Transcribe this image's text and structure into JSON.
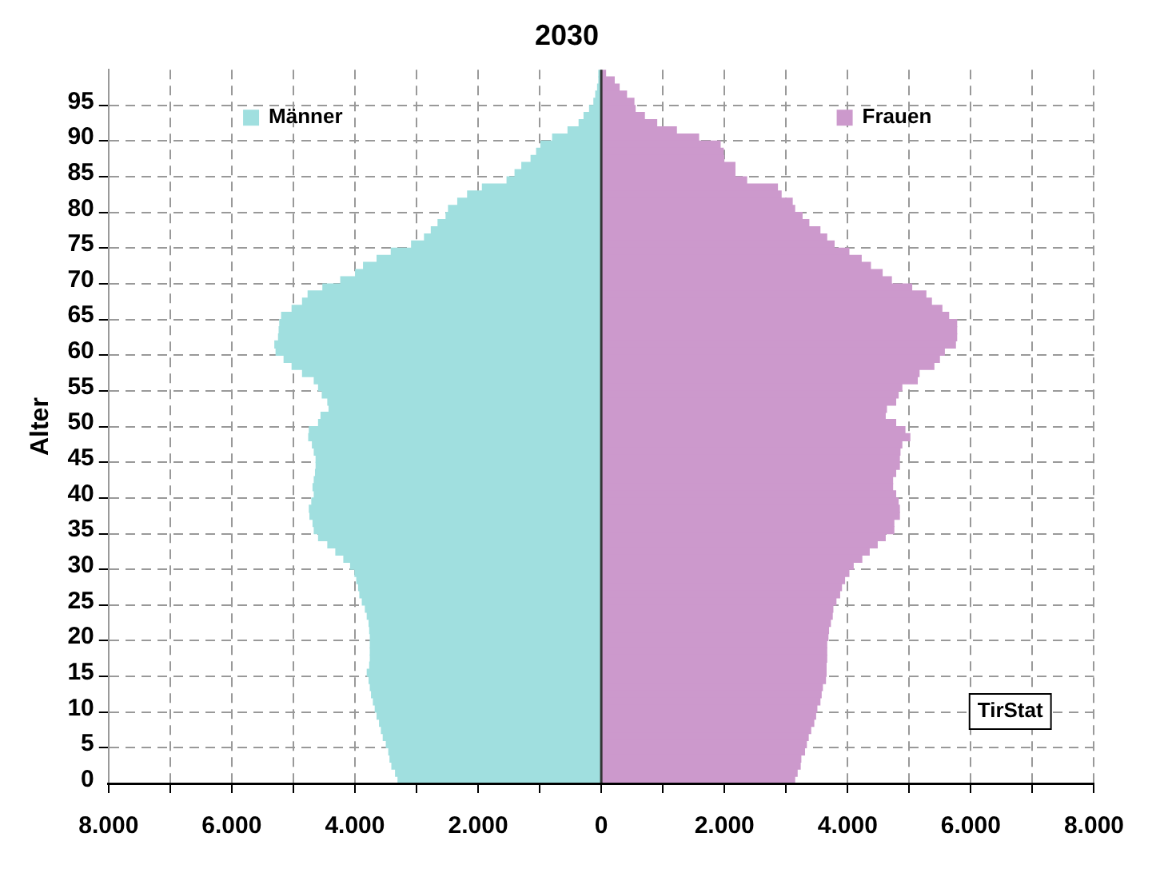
{
  "chart_data": {
    "type": "bar",
    "orientation": "horizontal",
    "stacked": true,
    "title": "2030",
    "ylabel": "Alter",
    "categories": [
      null,
      null,
      null,
      null,
      "95",
      null,
      null,
      null,
      null,
      "90",
      null,
      null,
      null,
      null,
      "85",
      null,
      null,
      null,
      null,
      "80",
      null,
      null,
      null,
      null,
      "75",
      null,
      null,
      null,
      null,
      "70",
      null,
      null,
      null,
      null,
      "65",
      null,
      null,
      null,
      null,
      "60",
      null,
      null,
      null,
      null,
      "55",
      null,
      null,
      null,
      null,
      "50",
      null,
      null,
      null,
      null,
      "45",
      null,
      null,
      null,
      null,
      "40",
      null,
      null,
      null,
      null,
      "35",
      null,
      null,
      null,
      null,
      "30",
      null,
      null,
      null,
      null,
      "25",
      null,
      null,
      null,
      null,
      "20",
      null,
      null,
      null,
      null,
      "15",
      null,
      null,
      null,
      null,
      "10",
      null,
      null,
      null,
      null,
      "5",
      null,
      null,
      null,
      null,
      "0"
    ],
    "series": [
      {
        "name": "Männer",
        "color": "#a0dfdf",
        "values": [
          -40,
          -40,
          -60,
          -90,
          -120,
          -190,
          -280,
          -360,
          -540,
          -790,
          -980,
          -1050,
          -1140,
          -1290,
          -1400,
          -1530,
          -1930,
          -2170,
          -2330,
          -2480,
          -2520,
          -2650,
          -2760,
          -2870,
          -3080,
          -3410,
          -3640,
          -3860,
          -3990,
          -4230,
          -4520,
          -4760,
          -4850,
          -5020,
          -5190,
          -5220,
          -5230,
          -5240,
          -5300,
          -5280,
          -5150,
          -5020,
          -4850,
          -4660,
          -4590,
          -4530,
          -4440,
          -4420,
          -4550,
          -4590,
          -4740,
          -4750,
          -4690,
          -4660,
          -4630,
          -4630,
          -4640,
          -4660,
          -4680,
          -4660,
          -4700,
          -4740,
          -4730,
          -4680,
          -4660,
          -4590,
          -4440,
          -4310,
          -4180,
          -4070,
          -4000,
          -3970,
          -3940,
          -3920,
          -3880,
          -3830,
          -3800,
          -3770,
          -3760,
          -3750,
          -3750,
          -3750,
          -3750,
          -3760,
          -3800,
          -3770,
          -3750,
          -3730,
          -3700,
          -3670,
          -3640,
          -3600,
          -3570,
          -3540,
          -3490,
          -3450,
          -3430,
          -3400,
          -3340,
          -3300
        ]
      },
      {
        "name": "Frauen",
        "color": "#cc99cc",
        "values": [
          70,
          210,
          290,
          410,
          530,
          550,
          700,
          900,
          1220,
          1580,
          1930,
          1980,
          1990,
          2170,
          2170,
          2360,
          2860,
          2920,
          3100,
          3140,
          3260,
          3370,
          3550,
          3660,
          3780,
          4020,
          4220,
          4370,
          4560,
          4710,
          5040,
          5270,
          5360,
          5530,
          5640,
          5770,
          5770,
          5770,
          5750,
          5570,
          5490,
          5400,
          5160,
          5130,
          4880,
          4820,
          4780,
          4630,
          4610,
          4780,
          4930,
          5010,
          4880,
          4850,
          4840,
          4840,
          4780,
          4730,
          4730,
          4780,
          4820,
          4840,
          4840,
          4750,
          4750,
          4610,
          4480,
          4350,
          4230,
          4090,
          4020,
          3950,
          3900,
          3870,
          3810,
          3760,
          3750,
          3720,
          3690,
          3680,
          3660,
          3660,
          3660,
          3650,
          3650,
          3640,
          3590,
          3570,
          3550,
          3500,
          3480,
          3450,
          3400,
          3360,
          3330,
          3300,
          3240,
          3230,
          3180,
          3140
        ]
      }
    ],
    "xlim": [
      -8000,
      8000
    ],
    "xticks": [
      {
        "value": -8000,
        "label": "8.000"
      },
      {
        "value": -7000,
        "label": null
      },
      {
        "value": -6000,
        "label": "6.000"
      },
      {
        "value": -5000,
        "label": null
      },
      {
        "value": -4000,
        "label": "4.000"
      },
      {
        "value": -3000,
        "label": null
      },
      {
        "value": -2000,
        "label": "2.000"
      },
      {
        "value": -1000,
        "label": null
      },
      0,
      {
        "value": 1000,
        "label": null
      },
      {
        "value": 2000,
        "label": "2.000"
      },
      {
        "value": 3000,
        "label": null
      },
      {
        "value": 4000,
        "label": "4.000"
      },
      {
        "value": 5000,
        "label": null
      },
      {
        "value": 6000,
        "label": "6.000"
      },
      {
        "value": 7000,
        "label": null
      },
      {
        "value": 8000,
        "label": "8.000"
      }
    ],
    "grid": true,
    "legend": "top",
    "annotations": [
      "TirStat"
    ]
  }
}
